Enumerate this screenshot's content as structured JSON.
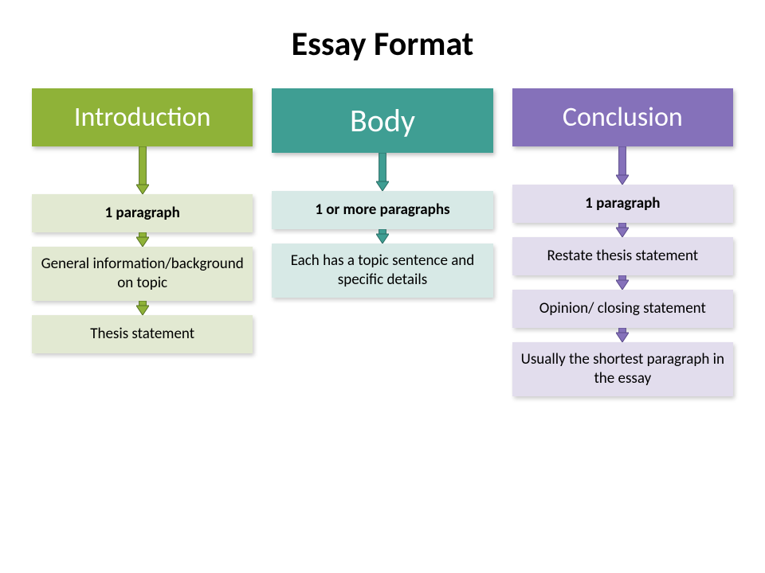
{
  "title": "Essay Format",
  "columns": [
    {
      "header": "Introduction",
      "header_bg": "#8fb238",
      "sub_bg": "#e2e9d2",
      "arrow_fill": "#8fb238",
      "arrow_stroke": "#567121",
      "header_fontsize": 34,
      "items": [
        {
          "text": "1 paragraph",
          "bold": true
        },
        {
          "text": "General information/background on topic",
          "bold": false
        },
        {
          "text": "Thesis statement",
          "bold": false
        }
      ],
      "arrow_after_header_height": 60,
      "arrow_between_height": 18
    },
    {
      "header": "Body",
      "header_bg": "#3f9e93",
      "sub_bg": "#d7e9e6",
      "arrow_fill": "#3f9e93",
      "arrow_stroke": "#2a6c64",
      "header_fontsize": 40,
      "items": [
        {
          "text": "1 or more paragraphs",
          "bold": true
        },
        {
          "text": "Each has a topic sentence and specific details",
          "bold": false
        }
      ],
      "arrow_after_header_height": 48,
      "arrow_between_height": 18
    },
    {
      "header": "Conclusion",
      "header_bg": "#8571ba",
      "sub_bg": "#e2dded",
      "arrow_fill": "#8571ba",
      "arrow_stroke": "#5a4a8a",
      "header_fontsize": 34,
      "items": [
        {
          "text": "1 paragraph",
          "bold": true
        },
        {
          "text": "Restate thesis statement",
          "bold": false
        },
        {
          "text": "Opinion/ closing statement",
          "bold": false
        },
        {
          "text": "Usually the shortest paragraph in the essay",
          "bold": false
        }
      ],
      "arrow_after_header_height": 48,
      "arrow_between_height": 18
    }
  ],
  "arrow_width": 16,
  "background_color": "#ffffff"
}
